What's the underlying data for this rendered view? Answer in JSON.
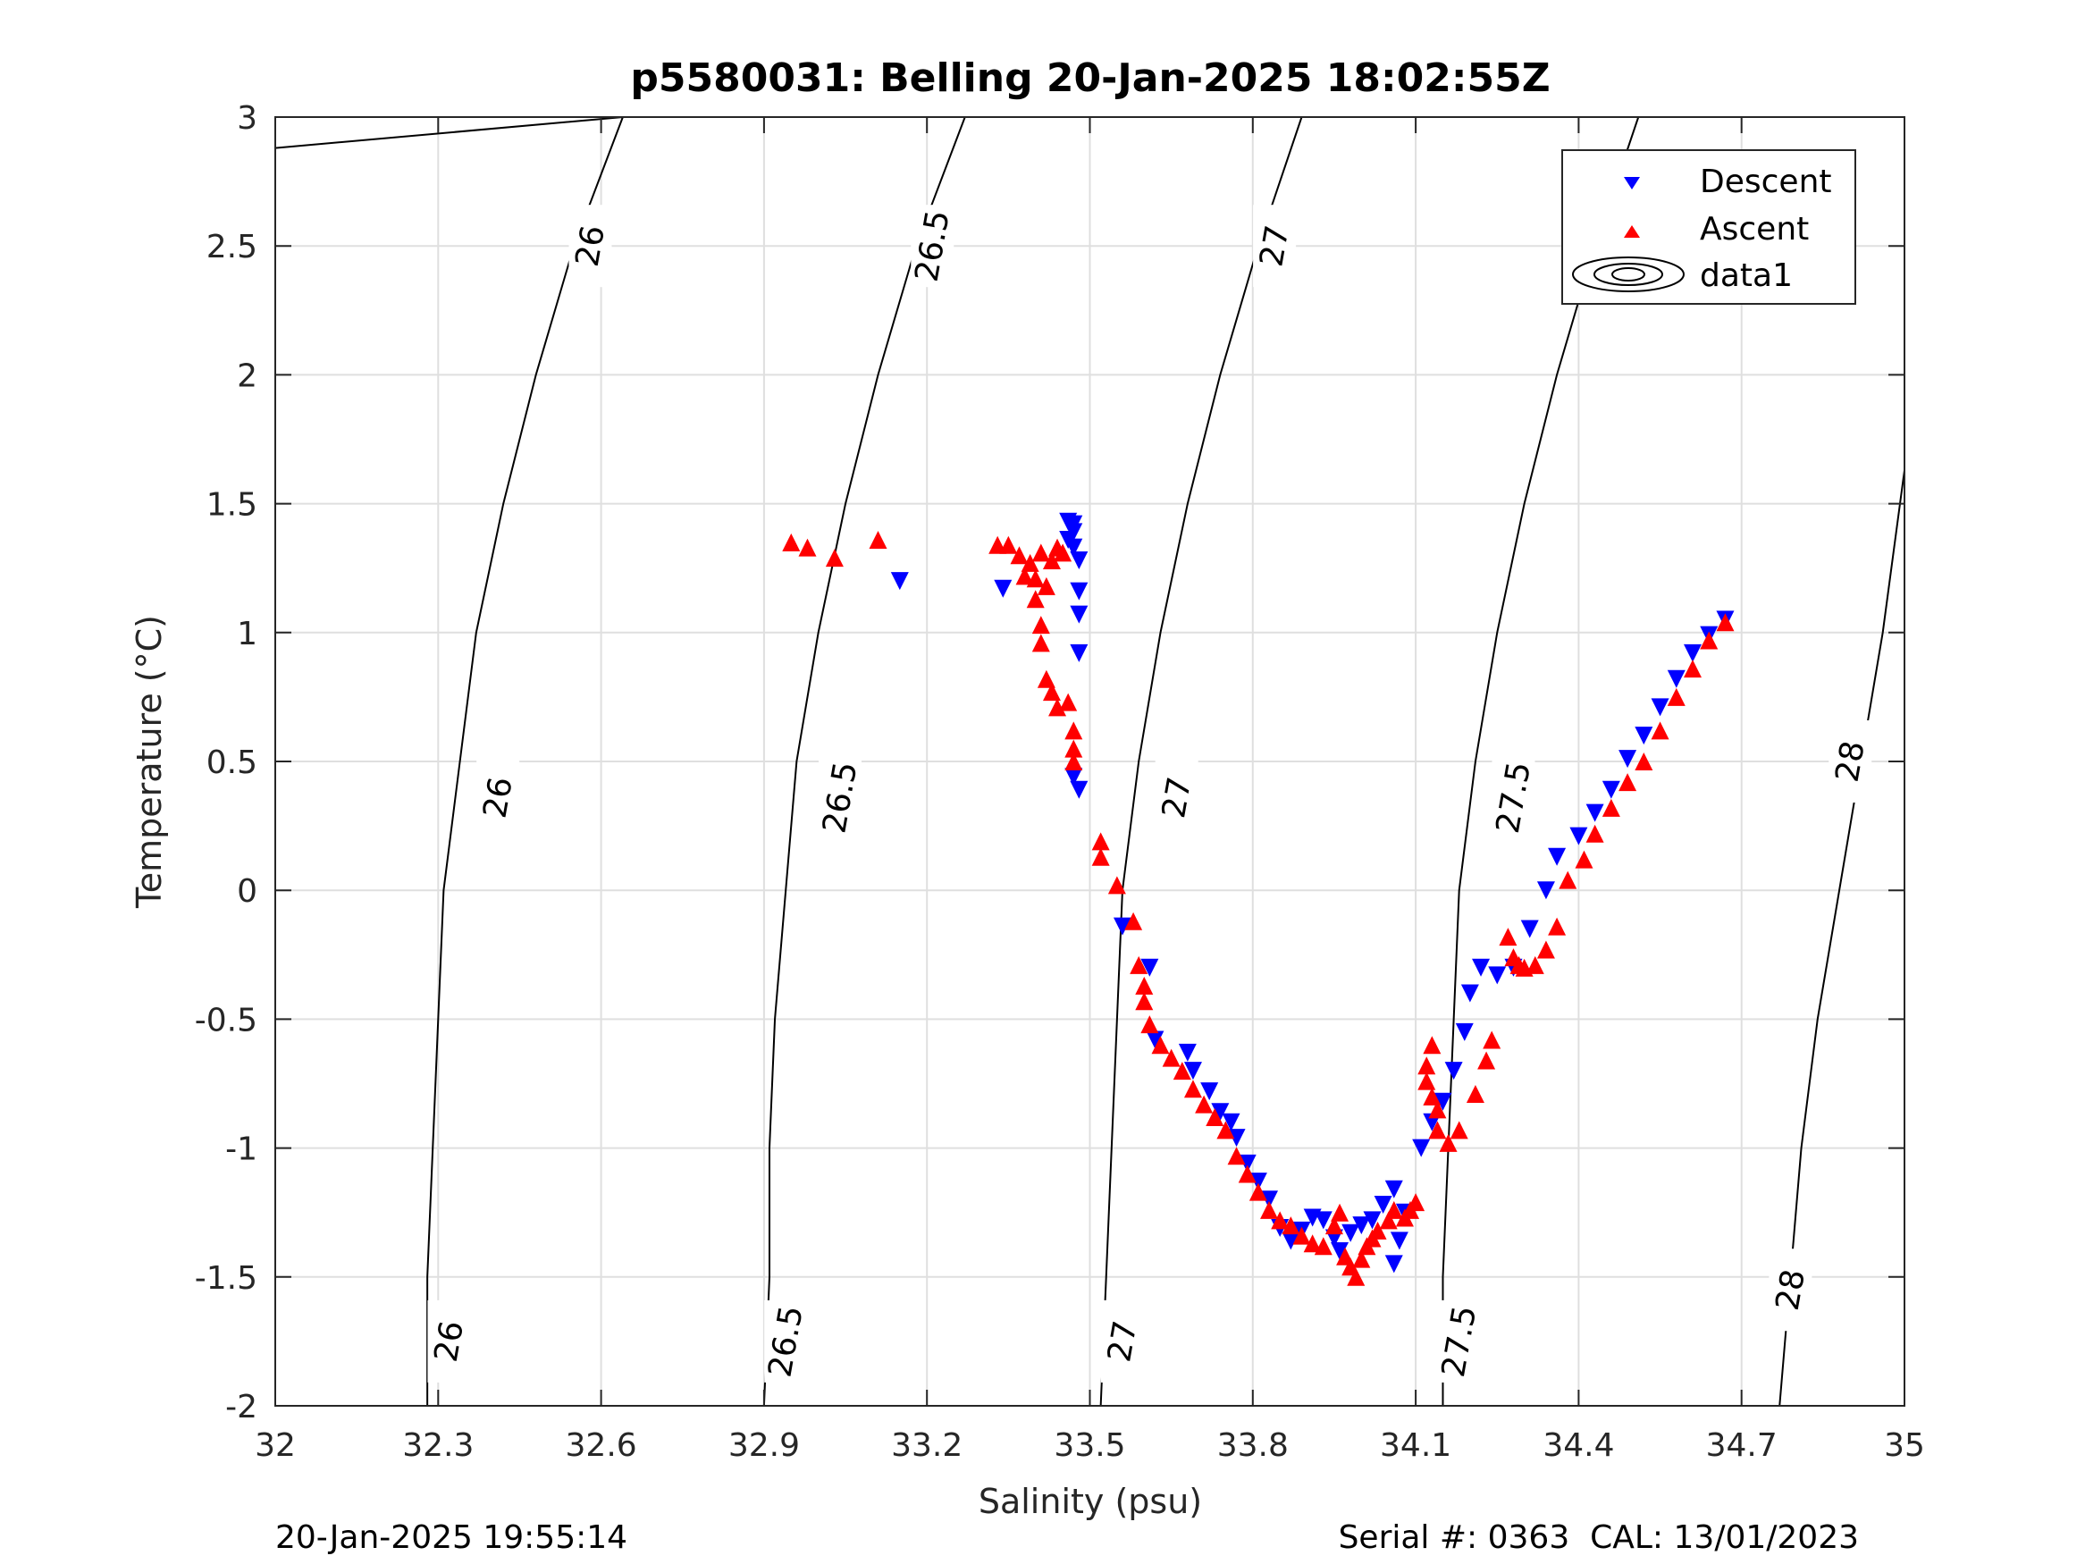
{
  "chart_data": {
    "type": "scatter",
    "title": "p5580031: Belling 20-Jan-2025 18:02:55Z",
    "xlabel": "Salinity (psu)",
    "ylabel": "Temperature (°C)",
    "xlim": [
      32,
      35
    ],
    "ylim": [
      -2,
      3
    ],
    "xticks": [
      32,
      32.3,
      32.6,
      32.9,
      33.2,
      33.5,
      33.8,
      34.1,
      34.4,
      34.7,
      35
    ],
    "xtick_labels": [
      "32",
      "32.3",
      "32.6",
      "32.9",
      "33.2",
      "33.5",
      "33.8",
      "34.1",
      "34.4",
      "34.7",
      "35"
    ],
    "yticks": [
      -2,
      -1.5,
      -1,
      -0.5,
      0,
      0.5,
      1,
      1.5,
      2,
      2.5,
      3
    ],
    "ytick_labels": [
      "-2",
      "-1.5",
      "-1",
      "-0.5",
      "0",
      "0.5",
      "1",
      "1.5",
      "2",
      "2.5",
      "3"
    ],
    "grid": true,
    "legend_position": "top-right",
    "legend": [
      "Descent",
      "Ascent",
      "data1"
    ],
    "colors": {
      "descent": "#0000ff",
      "ascent": "#ff0000",
      "contour": "#000000"
    },
    "series": [
      {
        "name": "Descent",
        "marker": "triangle-down",
        "points": [
          [
            33.15,
            1.2
          ],
          [
            33.34,
            1.17
          ],
          [
            33.46,
            1.43
          ],
          [
            33.47,
            1.42
          ],
          [
            33.47,
            1.39
          ],
          [
            33.46,
            1.36
          ],
          [
            33.47,
            1.33
          ],
          [
            33.48,
            1.28
          ],
          [
            33.48,
            1.16
          ],
          [
            33.48,
            1.07
          ],
          [
            33.48,
            0.92
          ],
          [
            33.48,
            0.39
          ],
          [
            33.47,
            0.44
          ],
          [
            33.56,
            -0.14
          ],
          [
            33.61,
            -0.3
          ],
          [
            33.62,
            -0.58
          ],
          [
            33.68,
            -0.63
          ],
          [
            33.69,
            -0.7
          ],
          [
            33.72,
            -0.78
          ],
          [
            33.74,
            -0.86
          ],
          [
            33.76,
            -0.9
          ],
          [
            33.77,
            -0.96
          ],
          [
            33.79,
            -1.06
          ],
          [
            33.81,
            -1.13
          ],
          [
            33.83,
            -1.2
          ],
          [
            33.85,
            -1.31
          ],
          [
            33.87,
            -1.36
          ],
          [
            33.89,
            -1.32
          ],
          [
            33.91,
            -1.27
          ],
          [
            33.93,
            -1.28
          ],
          [
            33.95,
            -1.35
          ],
          [
            33.96,
            -1.4
          ],
          [
            33.98,
            -1.33
          ],
          [
            34.0,
            -1.3
          ],
          [
            34.02,
            -1.28
          ],
          [
            34.04,
            -1.22
          ],
          [
            34.06,
            -1.16
          ],
          [
            34.08,
            -1.25
          ],
          [
            34.07,
            -1.36
          ],
          [
            34.06,
            -1.45
          ],
          [
            34.11,
            -1.0
          ],
          [
            34.13,
            -0.9
          ],
          [
            34.15,
            -0.82
          ],
          [
            34.17,
            -0.7
          ],
          [
            34.19,
            -0.55
          ],
          [
            34.2,
            -0.4
          ],
          [
            34.22,
            -0.3
          ],
          [
            34.25,
            -0.33
          ],
          [
            34.28,
            -0.3
          ],
          [
            34.31,
            -0.15
          ],
          [
            34.34,
            0.0
          ],
          [
            34.36,
            0.13
          ],
          [
            34.4,
            0.21
          ],
          [
            34.43,
            0.3
          ],
          [
            34.46,
            0.39
          ],
          [
            34.49,
            0.51
          ],
          [
            34.52,
            0.6
          ],
          [
            34.55,
            0.71
          ],
          [
            34.58,
            0.82
          ],
          [
            34.61,
            0.92
          ],
          [
            34.64,
            0.99
          ],
          [
            34.67,
            1.05
          ]
        ]
      },
      {
        "name": "Ascent",
        "marker": "triangle-up",
        "points": [
          [
            32.95,
            1.35
          ],
          [
            32.98,
            1.33
          ],
          [
            33.03,
            1.29
          ],
          [
            33.11,
            1.36
          ],
          [
            33.33,
            1.34
          ],
          [
            33.35,
            1.34
          ],
          [
            33.37,
            1.3
          ],
          [
            33.39,
            1.27
          ],
          [
            33.41,
            1.31
          ],
          [
            33.43,
            1.28
          ],
          [
            33.44,
            1.33
          ],
          [
            33.45,
            1.31
          ],
          [
            33.38,
            1.22
          ],
          [
            33.4,
            1.21
          ],
          [
            33.42,
            1.18
          ],
          [
            33.4,
            1.13
          ],
          [
            33.41,
            1.03
          ],
          [
            33.41,
            0.96
          ],
          [
            33.42,
            0.82
          ],
          [
            33.43,
            0.77
          ],
          [
            33.44,
            0.71
          ],
          [
            33.46,
            0.73
          ],
          [
            33.47,
            0.62
          ],
          [
            33.47,
            0.55
          ],
          [
            33.47,
            0.5
          ],
          [
            33.52,
            0.19
          ],
          [
            33.52,
            0.13
          ],
          [
            33.55,
            0.02
          ],
          [
            33.58,
            -0.12
          ],
          [
            33.59,
            -0.29
          ],
          [
            33.6,
            -0.37
          ],
          [
            33.6,
            -0.43
          ],
          [
            33.61,
            -0.52
          ],
          [
            33.63,
            -0.6
          ],
          [
            33.65,
            -0.65
          ],
          [
            33.67,
            -0.7
          ],
          [
            33.69,
            -0.77
          ],
          [
            33.71,
            -0.83
          ],
          [
            33.73,
            -0.88
          ],
          [
            33.75,
            -0.93
          ],
          [
            33.77,
            -1.03
          ],
          [
            33.79,
            -1.1
          ],
          [
            33.81,
            -1.17
          ],
          [
            33.83,
            -1.24
          ],
          [
            33.85,
            -1.28
          ],
          [
            33.87,
            -1.3
          ],
          [
            33.89,
            -1.34
          ],
          [
            33.91,
            -1.37
          ],
          [
            33.93,
            -1.38
          ],
          [
            33.95,
            -1.3
          ],
          [
            33.96,
            -1.25
          ],
          [
            33.97,
            -1.42
          ],
          [
            33.98,
            -1.46
          ],
          [
            33.99,
            -1.5
          ],
          [
            34.0,
            -1.43
          ],
          [
            34.01,
            -1.38
          ],
          [
            34.02,
            -1.35
          ],
          [
            34.03,
            -1.32
          ],
          [
            34.05,
            -1.28
          ],
          [
            34.06,
            -1.24
          ],
          [
            34.08,
            -1.27
          ],
          [
            34.09,
            -1.24
          ],
          [
            34.1,
            -1.21
          ],
          [
            34.12,
            -0.68
          ],
          [
            34.12,
            -0.74
          ],
          [
            34.13,
            -0.6
          ],
          [
            34.13,
            -0.8
          ],
          [
            34.14,
            -0.85
          ],
          [
            34.14,
            -0.93
          ],
          [
            34.16,
            -0.98
          ],
          [
            34.18,
            -0.93
          ],
          [
            34.21,
            -0.79
          ],
          [
            34.23,
            -0.66
          ],
          [
            34.24,
            -0.58
          ],
          [
            34.27,
            -0.18
          ],
          [
            34.28,
            -0.26
          ],
          [
            34.29,
            -0.29
          ],
          [
            34.3,
            -0.3
          ],
          [
            34.32,
            -0.29
          ],
          [
            34.34,
            -0.23
          ],
          [
            34.36,
            -0.14
          ],
          [
            34.38,
            0.04
          ],
          [
            34.41,
            0.12
          ],
          [
            34.43,
            0.22
          ],
          [
            34.46,
            0.32
          ],
          [
            34.49,
            0.42
          ],
          [
            34.52,
            0.5
          ],
          [
            34.55,
            0.62
          ],
          [
            34.58,
            0.75
          ],
          [
            34.61,
            0.86
          ],
          [
            34.64,
            0.97
          ],
          [
            34.67,
            1.04
          ]
        ]
      }
    ],
    "contours": [
      {
        "label": "26",
        "points": [
          [
            32.0,
            2.88
          ],
          [
            32.64,
            3.0
          ],
          [
            32.55,
            2.5
          ],
          [
            32.48,
            2.0
          ],
          [
            32.42,
            1.5
          ],
          [
            32.37,
            1.0
          ],
          [
            32.34,
            0.5
          ],
          [
            32.31,
            0.0
          ],
          [
            32.3,
            -0.5
          ],
          [
            32.29,
            -1.0
          ],
          [
            32.28,
            -1.5
          ],
          [
            32.28,
            -2.0
          ]
        ],
        "label_points": [
          [
            32.58,
            2.5
          ],
          [
            32.41,
            0.36
          ],
          [
            32.32,
            -1.75
          ]
        ]
      },
      {
        "label": "26.5",
        "points": [
          [
            33.27,
            3.0
          ],
          [
            33.18,
            2.5
          ],
          [
            33.11,
            2.0
          ],
          [
            33.05,
            1.5
          ],
          [
            33.0,
            1.0
          ],
          [
            32.96,
            0.5
          ],
          [
            32.94,
            0.0
          ],
          [
            32.92,
            -0.5
          ],
          [
            32.91,
            -1.0
          ],
          [
            32.91,
            -1.5
          ],
          [
            32.9,
            -2.0
          ]
        ],
        "label_points": [
          [
            33.21,
            2.5
          ],
          [
            33.04,
            0.36
          ],
          [
            32.94,
            -1.75
          ]
        ]
      },
      {
        "label": "27",
        "points": [
          [
            33.89,
            3.0
          ],
          [
            33.81,
            2.5
          ],
          [
            33.74,
            2.0
          ],
          [
            33.68,
            1.5
          ],
          [
            33.63,
            1.0
          ],
          [
            33.59,
            0.5
          ],
          [
            33.56,
            0.0
          ],
          [
            33.55,
            -0.5
          ],
          [
            33.54,
            -1.0
          ],
          [
            33.53,
            -1.5
          ],
          [
            33.52,
            -2.0
          ]
        ],
        "label_points": [
          [
            33.84,
            2.5
          ],
          [
            33.66,
            0.36
          ],
          [
            33.56,
            -1.75
          ]
        ]
      },
      {
        "label": "27.5",
        "points": [
          [
            34.51,
            3.0
          ],
          [
            34.43,
            2.5
          ],
          [
            34.36,
            2.0
          ],
          [
            34.3,
            1.5
          ],
          [
            34.25,
            1.0
          ],
          [
            34.21,
            0.5
          ],
          [
            34.18,
            0.0
          ],
          [
            34.17,
            -0.5
          ],
          [
            34.16,
            -1.0
          ],
          [
            34.15,
            -1.5
          ],
          [
            34.15,
            -2.0
          ]
        ],
        "label_points": [
          [
            34.46,
            2.5
          ],
          [
            34.28,
            0.36
          ],
          [
            34.18,
            -1.75
          ]
        ]
      },
      {
        "label": "28",
        "points": [
          [
            35.0,
            1.63
          ],
          [
            34.96,
            1.0
          ],
          [
            34.92,
            0.5
          ],
          [
            34.88,
            0.0
          ],
          [
            34.84,
            -0.5
          ],
          [
            34.81,
            -1.0
          ],
          [
            34.79,
            -1.5
          ],
          [
            34.77,
            -2.0
          ]
        ],
        "label_points": [
          [
            34.9,
            0.5
          ],
          [
            34.79,
            -1.55
          ]
        ]
      }
    ]
  },
  "footer": {
    "left": "20-Jan-2025 19:55:14",
    "right": "Serial #: 0363  CAL: 13/01/2023"
  }
}
